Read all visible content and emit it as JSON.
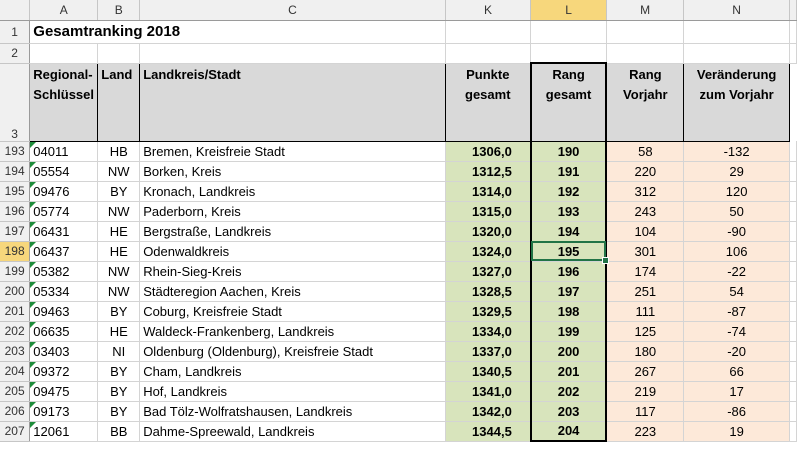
{
  "columns": [
    "A",
    "B",
    "C",
    "K",
    "L",
    "M",
    "N"
  ],
  "selected_column": "L",
  "title": "Gesamtranking 2018",
  "headers": {
    "a_line1": "Regional-",
    "a_line2": "Schlüssel",
    "b": "Land",
    "c": "Landkreis/Stadt",
    "k_line1": "Punkte",
    "k_line2": "gesamt",
    "l_line1": "Rang",
    "l_line2": "gesamt",
    "m_line1": "Rang",
    "m_line2": "Vorjahr",
    "n_line1": "Veränderung",
    "n_line2": "zum Vorjahr"
  },
  "row_numbers": {
    "r1": "1",
    "r2": "2",
    "r3": "3"
  },
  "active_row": "198",
  "rows": [
    {
      "n": "193",
      "key": "04011",
      "land": "HB",
      "name": "Bremen, Kreisfreie Stadt",
      "punkte": "1306,0",
      "rang": "190",
      "vorjahr": "58",
      "change": "-132"
    },
    {
      "n": "194",
      "key": "05554",
      "land": "NW",
      "name": "Borken, Kreis",
      "punkte": "1312,5",
      "rang": "191",
      "vorjahr": "220",
      "change": "29"
    },
    {
      "n": "195",
      "key": "09476",
      "land": "BY",
      "name": "Kronach, Landkreis",
      "punkte": "1314,0",
      "rang": "192",
      "vorjahr": "312",
      "change": "120"
    },
    {
      "n": "196",
      "key": "05774",
      "land": "NW",
      "name": "Paderborn, Kreis",
      "punkte": "1315,0",
      "rang": "193",
      "vorjahr": "243",
      "change": "50"
    },
    {
      "n": "197",
      "key": "06431",
      "land": "HE",
      "name": "Bergstraße, Landkreis",
      "punkte": "1320,0",
      "rang": "194",
      "vorjahr": "104",
      "change": "-90"
    },
    {
      "n": "198",
      "key": "06437",
      "land": "HE",
      "name": "Odenwaldkreis",
      "punkte": "1324,0",
      "rang": "195",
      "vorjahr": "301",
      "change": "106"
    },
    {
      "n": "199",
      "key": "05382",
      "land": "NW",
      "name": "Rhein-Sieg-Kreis",
      "punkte": "1327,0",
      "rang": "196",
      "vorjahr": "174",
      "change": "-22"
    },
    {
      "n": "200",
      "key": "05334",
      "land": "NW",
      "name": "Städteregion Aachen, Kreis",
      "punkte": "1328,5",
      "rang": "197",
      "vorjahr": "251",
      "change": "54"
    },
    {
      "n": "201",
      "key": "09463",
      "land": "BY",
      "name": "Coburg, Kreisfreie Stadt",
      "punkte": "1329,5",
      "rang": "198",
      "vorjahr": "111",
      "change": "-87"
    },
    {
      "n": "202",
      "key": "06635",
      "land": "HE",
      "name": "Waldeck-Frankenberg, Landkreis",
      "punkte": "1334,0",
      "rang": "199",
      "vorjahr": "125",
      "change": "-74"
    },
    {
      "n": "203",
      "key": "03403",
      "land": "NI",
      "name": "Oldenburg (Oldenburg), Kreisfreie Stadt",
      "punkte": "1337,0",
      "rang": "200",
      "vorjahr": "180",
      "change": "-20"
    },
    {
      "n": "204",
      "key": "09372",
      "land": "BY",
      "name": "Cham, Landkreis",
      "punkte": "1340,5",
      "rang": "201",
      "vorjahr": "267",
      "change": "66"
    },
    {
      "n": "205",
      "key": "09475",
      "land": "BY",
      "name": "Hof, Landkreis",
      "punkte": "1341,0",
      "rang": "202",
      "vorjahr": "219",
      "change": "17"
    },
    {
      "n": "206",
      "key": "09173",
      "land": "BY",
      "name": "Bad Tölz-Wolfratshausen, Landkreis",
      "punkte": "1342,0",
      "rang": "203",
      "vorjahr": "117",
      "change": "-86"
    },
    {
      "n": "207",
      "key": "12061",
      "land": "BB",
      "name": "Dahme-Spreewald, Landkreis",
      "punkte": "1344,5",
      "rang": "204",
      "vorjahr": "223",
      "change": "19"
    }
  ]
}
